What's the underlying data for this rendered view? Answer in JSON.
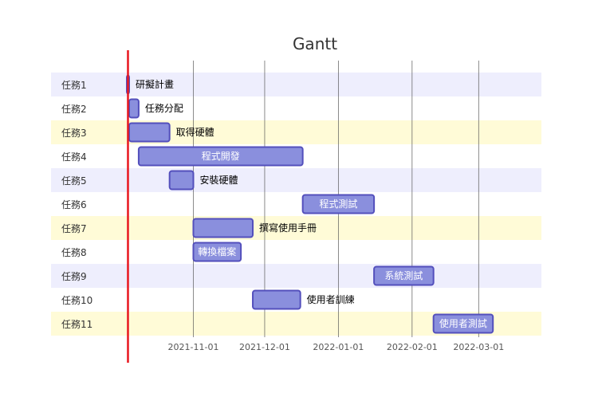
{
  "chart_data": {
    "type": "gantt",
    "title": "Gantt",
    "date_range": [
      "2021-10-04",
      "2022-03-19"
    ],
    "today_marker": "2021-10-05",
    "x_ticks": [
      "2021-11-01",
      "2021-12-01",
      "2022-01-01",
      "2022-02-01",
      "2022-03-01"
    ],
    "tasks": [
      {
        "label": "任務1",
        "name": "研擬計畫",
        "start": "2021-10-04",
        "end": "2021-10-05"
      },
      {
        "label": "任務2",
        "name": "任務分配",
        "start": "2021-10-05",
        "end": "2021-10-09"
      },
      {
        "label": "任務3",
        "name": "取得硬體",
        "start": "2021-10-05",
        "end": "2021-10-22"
      },
      {
        "label": "任務4",
        "name": "程式開發",
        "start": "2021-10-09",
        "end": "2021-12-17"
      },
      {
        "label": "任務5",
        "name": "安裝硬體",
        "start": "2021-10-22",
        "end": "2021-11-01"
      },
      {
        "label": "任務6",
        "name": "程式測試",
        "start": "2021-12-17",
        "end": "2022-01-16"
      },
      {
        "label": "任務7",
        "name": "撰寫使用手冊",
        "start": "2021-11-01",
        "end": "2021-11-26"
      },
      {
        "label": "任務8",
        "name": "轉換檔案",
        "start": "2021-11-01",
        "end": "2021-11-21"
      },
      {
        "label": "任務9",
        "name": "系統測試",
        "start": "2022-01-16",
        "end": "2022-02-10"
      },
      {
        "label": "任務10",
        "name": "使用者訓練",
        "start": "2021-11-26",
        "end": "2021-12-16"
      },
      {
        "label": "任務11",
        "name": "使用者測試",
        "start": "2022-02-10",
        "end": "2022-03-07"
      }
    ],
    "label_inside": [
      false,
      false,
      false,
      true,
      false,
      true,
      false,
      true,
      true,
      false,
      true
    ],
    "colors": {
      "bar_fill": "#8a8fdd",
      "bar_stroke": "#534fbc",
      "row_band_a": "#eeeefd",
      "row_band_b": "#fffbd7",
      "grid": "#555555",
      "today": "#e8161e",
      "outside_text": "#000000",
      "inside_text": "#ffffff"
    }
  }
}
